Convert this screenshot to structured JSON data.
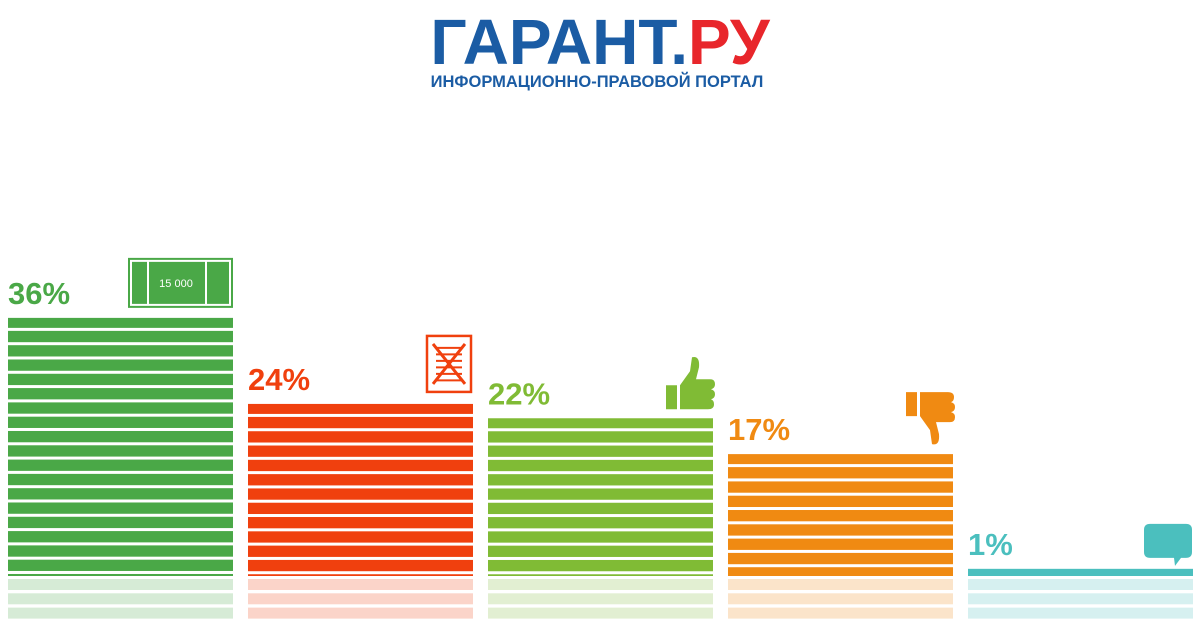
{
  "header": {
    "logo_main": "ГАРАНТ.",
    "logo_accent": "РУ",
    "tagline": "ИНФОРМАЦИОННО-ПРАВОВОЙ ПОРТАЛ"
  },
  "chart_data": {
    "type": "bar",
    "categories": [
      null,
      null,
      null,
      null,
      null
    ],
    "values": [
      36,
      24,
      22,
      17,
      1
    ],
    "value_labels": [
      "36%",
      "24%",
      "22%",
      "17%",
      "1%"
    ],
    "colors": [
      "#4aa847",
      "#f0400e",
      "#80bb35",
      "#f08a12",
      "#4bbfbe"
    ],
    "annotations": [
      "15 000"
    ]
  }
}
